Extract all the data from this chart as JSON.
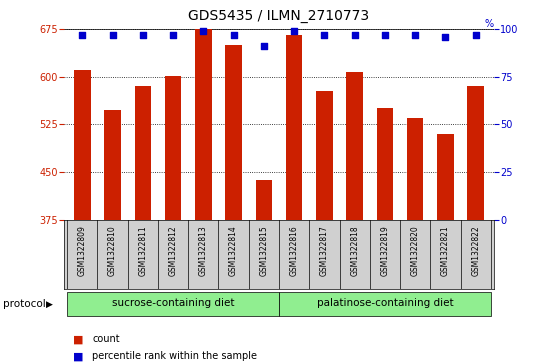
{
  "title": "GDS5435 / ILMN_2710773",
  "samples": [
    "GSM1322809",
    "GSM1322810",
    "GSM1322811",
    "GSM1322812",
    "GSM1322813",
    "GSM1322814",
    "GSM1322815",
    "GSM1322816",
    "GSM1322817",
    "GSM1322818",
    "GSM1322819",
    "GSM1322820",
    "GSM1322821",
    "GSM1322822"
  ],
  "counts": [
    610,
    548,
    585,
    601,
    675,
    650,
    437,
    665,
    578,
    608,
    550,
    535,
    510,
    585
  ],
  "percentiles": [
    97,
    97,
    97,
    97,
    99,
    97,
    91,
    99,
    97,
    97,
    97,
    97,
    96,
    97
  ],
  "bar_color": "#cc2000",
  "dot_color": "#0000cc",
  "ylim_left": [
    375,
    675
  ],
  "ylim_right": [
    0,
    100
  ],
  "yticks_left": [
    375,
    450,
    525,
    600,
    675
  ],
  "yticks_right": [
    0,
    25,
    50,
    75,
    100
  ],
  "groups": [
    {
      "label": "sucrose-containing diet",
      "start": 0,
      "end": 7
    },
    {
      "label": "palatinose-containing diet",
      "start": 7,
      "end": 14
    }
  ],
  "group_color": "#90ee90",
  "protocol_label": "protocol",
  "legend_count_label": "count",
  "legend_percentile_label": "percentile rank within the sample",
  "title_fontsize": 10,
  "tick_fontsize": 7,
  "label_fontsize": 7.5
}
